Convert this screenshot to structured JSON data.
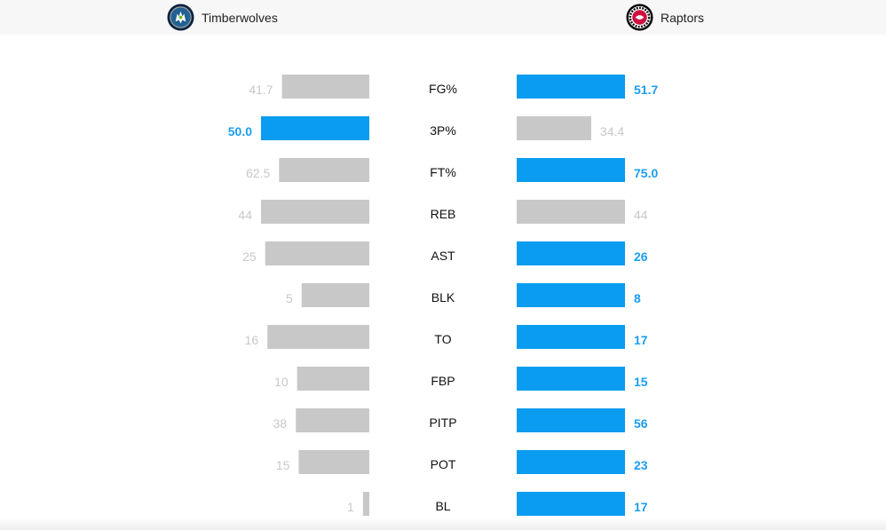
{
  "teams": {
    "home": {
      "name": "Timberwolves",
      "logo_icon": "timberwolves-logo-icon"
    },
    "away": {
      "name": "Raptors",
      "logo_icon": "raptors-logo-icon"
    }
  },
  "colors": {
    "leader": "#0a9cf0",
    "trailer": "#c8c8c8",
    "leader_text": "#1a9ef0",
    "trailer_text": "#c8c8c8",
    "category_text": "#111111"
  },
  "chart_data": {
    "type": "bar",
    "orientation": "horizontal-butterfly",
    "categories": [
      "FG%",
      "3P%",
      "FT%",
      "REB",
      "AST",
      "BLK",
      "TO",
      "FBP",
      "PITP",
      "POT",
      "BL"
    ],
    "series": [
      {
        "name": "Timberwolves",
        "values": [
          41.7,
          50.0,
          62.5,
          44,
          25,
          5,
          16,
          10,
          38,
          15,
          1
        ],
        "labels": [
          "41.7",
          "50.0",
          "62.5",
          "44",
          "25",
          "5",
          "16",
          "10",
          "38",
          "15",
          "1"
        ]
      },
      {
        "name": "Raptors",
        "values": [
          51.7,
          34.4,
          75.0,
          44,
          26,
          8,
          17,
          15,
          56,
          23,
          17
        ],
        "labels": [
          "51.7",
          "34.4",
          "75.0",
          "44",
          "26",
          "8",
          "17",
          "15",
          "56",
          "23",
          "17"
        ]
      }
    ],
    "highlight": [
      "away",
      "home",
      "away",
      "none",
      "away",
      "away",
      "away",
      "away",
      "away",
      "away",
      "away"
    ]
  }
}
